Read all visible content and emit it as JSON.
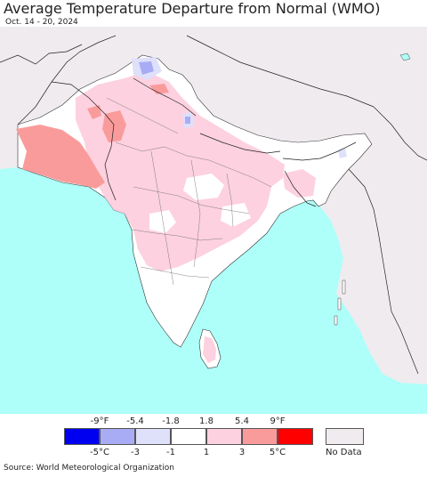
{
  "header": {
    "title": "Average Temperature Departure from Normal (WMO)",
    "subtitle": "Oct. 14 - 20, 2024"
  },
  "map": {
    "colors": {
      "ocean": "#aefff9",
      "no_data": "#f0ebef",
      "near_normal": "#ffffff",
      "warm_1": "#fdd1df",
      "warm_3": "#fa9b9b",
      "cool_1": "#dfe0fa",
      "cool_3": "#a8acf5"
    }
  },
  "legend": {
    "fahrenheit_labels": [
      "-9°F",
      "-5.4",
      "-1.8",
      "1.8",
      "5.4",
      "9°F"
    ],
    "celsius_labels": [
      "-5°C",
      "-3",
      "-1",
      "1",
      "3",
      "5°C"
    ],
    "swatch_colors": [
      "#0000f0",
      "#a8acf5",
      "#dfe0fa",
      "#ffffff",
      "#fdd1df",
      "#fa9b9b",
      "#fe0000"
    ],
    "no_data_label": "No Data",
    "no_data_color": "#f0ebef"
  },
  "footer": {
    "source": "Source: World Meteorological Organization"
  }
}
